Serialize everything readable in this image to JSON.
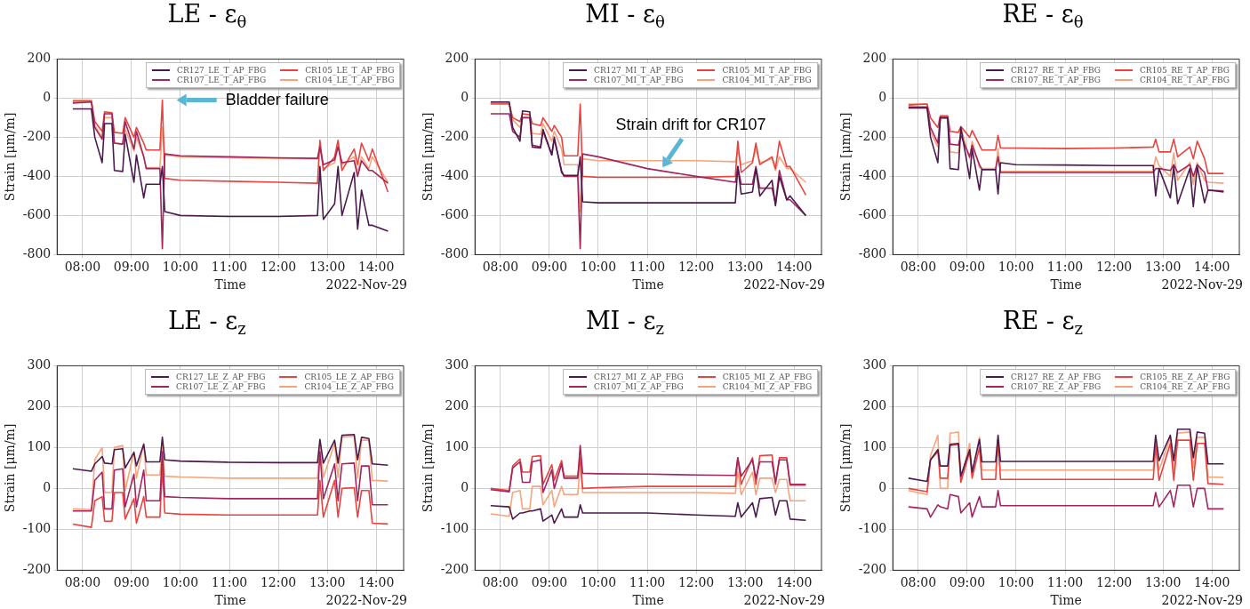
{
  "chart_data": [
    {
      "type": "line",
      "title": "LE - ε$_{θ}$",
      "xlabel": "Time",
      "ylabel": "Strain [μm/m]",
      "xlim": [
        7.48,
        14.56
      ],
      "xticks": [
        {
          "value": 8,
          "label": "08:00"
        },
        {
          "value": 9,
          "label": "09:00"
        },
        {
          "value": 10,
          "label": "10:00"
        },
        {
          "value": 11,
          "label": "11:00"
        },
        {
          "value": 12,
          "label": "12:00"
        },
        {
          "value": 13,
          "label": "13:00"
        },
        {
          "value": 14,
          "label": "14:00"
        }
      ],
      "ylim": [
        -800,
        200
      ],
      "yticks": [
        -800,
        -600,
        -400,
        -200,
        0,
        200
      ],
      "grid": true,
      "legend": "top right",
      "x": [
        7.8,
        8.18,
        8.25,
        8.4,
        8.45,
        8.6,
        8.65,
        8.82,
        8.87,
        9.05,
        9.1,
        9.25,
        9.3,
        9.58,
        9.63,
        9.68,
        10.0,
        11.0,
        12.0,
        12.8,
        12.85,
        12.92,
        13.15,
        13.22,
        13.3,
        13.55,
        13.62,
        13.7,
        13.85,
        13.92,
        14.24
      ],
      "series": [
        {
          "name": "CR127_LE_T_AP_FBG",
          "color": "#4a1a4c",
          "values": [
            -55,
            -55,
            -200,
            -330,
            -130,
            -130,
            -370,
            -375,
            -185,
            -430,
            -290,
            -510,
            -440,
            -440,
            -350,
            -580,
            -600,
            -605,
            -605,
            -600,
            -350,
            -620,
            -540,
            -350,
            -600,
            -380,
            -670,
            -470,
            -650,
            -650,
            -680
          ]
        },
        {
          "name": "CR107_LE_T_AP_FBG",
          "color": "#a2255f",
          "values": [
            -25,
            -20,
            -150,
            -210,
            -80,
            -80,
            -230,
            -235,
            -120,
            -260,
            -170,
            -300,
            -360,
            -360,
            -770,
            -285,
            -295,
            -300,
            -305,
            -308,
            -250,
            -340,
            -315,
            -250,
            -330,
            -320,
            -400,
            -320,
            -370,
            -370,
            -435
          ]
        },
        {
          "name": "CR105_LE_T_AP_FBG",
          "color": "#e8433f",
          "values": [
            -15,
            -15,
            -120,
            -170,
            -70,
            -75,
            -175,
            -180,
            -100,
            -200,
            -150,
            -230,
            -265,
            -265,
            -10,
            -410,
            -420,
            -425,
            -430,
            -435,
            -215,
            -370,
            -300,
            -215,
            -370,
            -260,
            -340,
            -230,
            -320,
            -260,
            -480
          ]
        },
        {
          "name": "CR104_LE_T_AP_FBG",
          "color": "#f7a47c",
          "values": [
            -10,
            -10,
            -140,
            -200,
            -100,
            -100,
            -230,
            -235,
            -160,
            -270,
            -200,
            -300,
            -355,
            -355,
            -150,
            -290,
            -300,
            -305,
            -308,
            -310,
            -240,
            -360,
            -330,
            -240,
            -340,
            -300,
            -380,
            -300,
            -360,
            -300,
            -430
          ]
        }
      ],
      "annotations": [
        "Bladder failure",
        "2022-Nov-29"
      ]
    },
    {
      "type": "line",
      "title": "MI - ε$_{θ}$",
      "xlabel": "Time",
      "ylabel": "Strain [μm/m]",
      "xlim": [
        7.48,
        14.56
      ],
      "xticks": [
        {
          "value": 8,
          "label": "08:00"
        },
        {
          "value": 9,
          "label": "09:00"
        },
        {
          "value": 10,
          "label": "10:00"
        },
        {
          "value": 11,
          "label": "11:00"
        },
        {
          "value": 12,
          "label": "12:00"
        },
        {
          "value": 13,
          "label": "13:00"
        },
        {
          "value": 14,
          "label": "14:00"
        }
      ],
      "ylim": [
        -800,
        200
      ],
      "yticks": [
        -800,
        -600,
        -400,
        -200,
        0,
        200
      ],
      "grid": true,
      "legend": "top right",
      "x": [
        7.8,
        8.18,
        8.25,
        8.4,
        8.45,
        8.6,
        8.65,
        8.82,
        8.87,
        9.05,
        9.1,
        9.25,
        9.3,
        9.58,
        9.63,
        9.68,
        10.0,
        11.0,
        12.0,
        12.8,
        12.85,
        12.92,
        13.15,
        13.22,
        13.3,
        13.55,
        13.62,
        13.7,
        13.85,
        13.92,
        14.24
      ],
      "series": [
        {
          "name": "CR127_MI_T_AP_FBG",
          "color": "#4a1a4c",
          "values": [
            -20,
            -20,
            -150,
            -220,
            -65,
            -70,
            -250,
            -255,
            -160,
            -290,
            -200,
            -380,
            -395,
            -395,
            -300,
            -530,
            -535,
            -535,
            -535,
            -535,
            -350,
            -490,
            -480,
            -360,
            -500,
            -420,
            -550,
            -400,
            -520,
            -500,
            -600
          ]
        },
        {
          "name": "CR107_MI_T_AP_FBG",
          "color": "#a2255f",
          "values": [
            -80,
            -80,
            -170,
            -200,
            -100,
            -100,
            -240,
            -250,
            -170,
            -290,
            -210,
            -370,
            -400,
            -400,
            -770,
            -285,
            -300,
            -360,
            -400,
            -430,
            -350,
            -440,
            -440,
            -350,
            -460,
            -460,
            -540,
            -370,
            -520,
            -520,
            -600
          ]
        },
        {
          "name": "CR105_MI_T_AP_FBG",
          "color": "#e8433f",
          "values": [
            -30,
            -30,
            -100,
            -120,
            -80,
            -85,
            -130,
            -140,
            -100,
            -170,
            -140,
            -200,
            -295,
            -295,
            -30,
            -400,
            -405,
            -405,
            -405,
            -400,
            -220,
            -380,
            -330,
            -230,
            -340,
            -300,
            -360,
            -220,
            -350,
            -350,
            -495
          ]
        },
        {
          "name": "CR104_MI_T_AP_FBG",
          "color": "#f7a47c",
          "values": [
            -25,
            -25,
            -110,
            -150,
            -100,
            -100,
            -180,
            -185,
            -130,
            -220,
            -170,
            -260,
            -340,
            -340,
            -580,
            -310,
            -320,
            -320,
            -320,
            -325,
            -270,
            -340,
            -320,
            -260,
            -330,
            -310,
            -370,
            -300,
            -360,
            -360,
            -430
          ]
        }
      ],
      "annotations": [
        {
          "text": "Strain drift for CR107",
          "x": 11.31,
          "y": -354
        },
        "2022-Nov-29"
      ]
    },
    {
      "type": "line",
      "title": "RE - ε$_{θ}$",
      "xlabel": "Time",
      "ylabel": "Strain [μm/m]",
      "xlim": [
        7.48,
        14.56
      ],
      "xticks": [
        {
          "value": 8,
          "label": "08:00"
        },
        {
          "value": 9,
          "label": "09:00"
        },
        {
          "value": 10,
          "label": "10:00"
        },
        {
          "value": 11,
          "label": "11:00"
        },
        {
          "value": 12,
          "label": "12:00"
        },
        {
          "value": 13,
          "label": "13:00"
        },
        {
          "value": 14,
          "label": "14:00"
        }
      ],
      "ylim": [
        -800,
        200
      ],
      "yticks": [
        -800,
        -600,
        -400,
        -200,
        0,
        200
      ],
      "grid": true,
      "legend": "top right",
      "x": [
        7.8,
        8.18,
        8.25,
        8.4,
        8.45,
        8.6,
        8.65,
        8.82,
        8.87,
        9.05,
        9.1,
        9.25,
        9.3,
        9.58,
        9.63,
        9.68,
        10.0,
        11.0,
        12.0,
        12.8,
        12.85,
        12.92,
        13.15,
        13.22,
        13.3,
        13.55,
        13.62,
        13.7,
        13.85,
        13.92,
        14.24
      ],
      "series": [
        {
          "name": "CR127_RE_T_AP_FBG",
          "color": "#4a1a4c",
          "values": [
            -50,
            -50,
            -200,
            -330,
            -100,
            -100,
            -360,
            -365,
            -150,
            -410,
            -260,
            -470,
            -365,
            -365,
            -490,
            -330,
            -340,
            -342,
            -345,
            -345,
            -500,
            -360,
            -510,
            -350,
            -540,
            -360,
            -555,
            -350,
            -535,
            -470,
            -480
          ]
        },
        {
          "name": "CR107_RE_T_AP_FBG",
          "color": "#a2255f",
          "values": [
            -45,
            -45,
            -150,
            -230,
            -100,
            -100,
            -235,
            -240,
            -190,
            -300,
            -240,
            -340,
            -365,
            -365,
            -300,
            -380,
            -380,
            -380,
            -380,
            -380,
            -360,
            -360,
            -370,
            -340,
            -380,
            -340,
            -400,
            -340,
            -380,
            -470,
            -475
          ]
        },
        {
          "name": "CR105_RE_T_AP_FBG",
          "color": "#e8433f",
          "values": [
            -35,
            -30,
            -100,
            -150,
            -90,
            -90,
            -170,
            -175,
            -145,
            -200,
            -165,
            -240,
            -265,
            -265,
            -190,
            -255,
            -255,
            -258,
            -255,
            -250,
            -210,
            -275,
            -275,
            -210,
            -300,
            -250,
            -310,
            -220,
            -310,
            -385,
            -385
          ]
        },
        {
          "name": "CR104_RE_T_AP_FBG",
          "color": "#f7a47c",
          "values": [
            -30,
            -30,
            -170,
            -250,
            -100,
            -105,
            -275,
            -280,
            -150,
            -310,
            -220,
            -355,
            -360,
            -360,
            -260,
            -375,
            -375,
            -375,
            -375,
            -375,
            -300,
            -345,
            -400,
            -280,
            -420,
            -330,
            -440,
            -330,
            -420,
            -430,
            -435
          ]
        }
      ],
      "annotations": [
        "2022-Nov-29"
      ]
    },
    {
      "type": "line",
      "title": "LE - ε$_{z}$",
      "xlabel": "Time",
      "ylabel": "Strain [μm/m]",
      "xlim": [
        7.48,
        14.56
      ],
      "xticks": [
        {
          "value": 8,
          "label": "08:00"
        },
        {
          "value": 9,
          "label": "09:00"
        },
        {
          "value": 10,
          "label": "10:00"
        },
        {
          "value": 11,
          "label": "11:00"
        },
        {
          "value": 12,
          "label": "12:00"
        },
        {
          "value": 13,
          "label": "13:00"
        },
        {
          "value": 14,
          "label": "14:00"
        }
      ],
      "ylim": [
        -200,
        300
      ],
      "yticks": [
        -200,
        -100,
        0,
        100,
        200,
        300
      ],
      "grid": true,
      "legend": "top right",
      "x": [
        7.8,
        8.18,
        8.25,
        8.4,
        8.45,
        8.6,
        8.65,
        8.82,
        8.87,
        9.05,
        9.1,
        9.25,
        9.3,
        9.58,
        9.63,
        9.68,
        10.0,
        11.0,
        12.0,
        12.8,
        12.85,
        12.92,
        13.15,
        13.22,
        13.3,
        13.55,
        13.62,
        13.7,
        13.85,
        13.92,
        14.24
      ],
      "series": [
        {
          "name": "CR127_LE_Z_AP_FBG",
          "color": "#4a1a4c",
          "values": [
            48,
            42,
            60,
            78,
            62,
            60,
            95,
            97,
            50,
            88,
            55,
            108,
            65,
            65,
            125,
            70,
            67,
            64,
            63,
            63,
            120,
            62,
            118,
            62,
            130,
            132,
            70,
            125,
            122,
            60,
            57
          ]
        },
        {
          "name": "CR107_LE_Z_AP_FBG",
          "color": "#a2255f",
          "values": [
            -55,
            -55,
            20,
            40,
            -50,
            -50,
            45,
            48,
            -45,
            35,
            -45,
            45,
            -30,
            -30,
            90,
            -20,
            -22,
            -25,
            -25,
            -25,
            90,
            -25,
            60,
            -30,
            60,
            62,
            -30,
            55,
            55,
            -40,
            -40
          ]
        },
        {
          "name": "CR105_LE_Z_AP_FBG",
          "color": "#e8433f",
          "values": [
            -87,
            -95,
            -30,
            -20,
            -80,
            -80,
            -10,
            -10,
            -75,
            -25,
            -85,
            -20,
            -70,
            -70,
            50,
            -60,
            -63,
            -65,
            -65,
            -65,
            20,
            -70,
            20,
            -70,
            0,
            2,
            -70,
            -5,
            -5,
            -85,
            -87
          ]
        },
        {
          "name": "CR104_LE_Z_AP_FBG",
          "color": "#f7a47c",
          "values": [
            -50,
            -52,
            70,
            100,
            -10,
            -10,
            100,
            105,
            -5,
            90,
            25,
            110,
            33,
            33,
            105,
            30,
            28,
            25,
            25,
            25,
            110,
            27,
            110,
            27,
            125,
            128,
            25,
            118,
            118,
            20,
            18
          ]
        }
      ],
      "annotations": [
        "2022-Nov-29"
      ]
    },
    {
      "type": "line",
      "title": "MI - ε$_{z}$",
      "xlabel": "Time",
      "ylabel": "Strain [μm/m]",
      "xlim": [
        7.48,
        14.56
      ],
      "xticks": [
        {
          "value": 8,
          "label": "08:00"
        },
        {
          "value": 9,
          "label": "09:00"
        },
        {
          "value": 10,
          "label": "10:00"
        },
        {
          "value": 11,
          "label": "11:00"
        },
        {
          "value": 12,
          "label": "12:00"
        },
        {
          "value": 13,
          "label": "13:00"
        },
        {
          "value": 14,
          "label": "14:00"
        }
      ],
      "ylim": [
        -200,
        300
      ],
      "yticks": [
        -200,
        -100,
        0,
        100,
        200,
        300
      ],
      "grid": true,
      "legend": "top right",
      "x": [
        7.8,
        8.18,
        8.25,
        8.4,
        8.45,
        8.6,
        8.65,
        8.82,
        8.87,
        9.05,
        9.1,
        9.25,
        9.3,
        9.58,
        9.63,
        9.68,
        10.0,
        11.0,
        12.0,
        12.8,
        12.85,
        12.92,
        13.15,
        13.22,
        13.3,
        13.55,
        13.62,
        13.7,
        13.85,
        13.92,
        14.24
      ],
      "series": [
        {
          "name": "CR127_MI_Z_AP_FBG",
          "color": "#4a1a4c",
          "values": [
            -42,
            -45,
            -75,
            -60,
            -60,
            -55,
            -55,
            -50,
            -80,
            -65,
            -85,
            -50,
            -70,
            -70,
            -40,
            -60,
            -60,
            -60,
            -65,
            -68,
            -35,
            -70,
            -35,
            -70,
            -25,
            -22,
            -65,
            -30,
            -30,
            -75,
            -78
          ]
        },
        {
          "name": "CR107_MI_Z_AP_FBG",
          "color": "#a2255f",
          "values": [
            -3,
            -8,
            50,
            65,
            15,
            15,
            65,
            70,
            -10,
            45,
            0,
            60,
            25,
            25,
            105,
            37,
            36,
            35,
            33,
            32,
            75,
            30,
            70,
            25,
            65,
            65,
            15,
            70,
            70,
            10,
            10
          ]
        },
        {
          "name": "CR105_MI_Z_AP_FBG",
          "color": "#e8433f",
          "values": [
            0,
            -5,
            55,
            72,
            40,
            40,
            78,
            80,
            10,
            58,
            20,
            68,
            30,
            30,
            75,
            0,
            2,
            5,
            5,
            5,
            75,
            10,
            75,
            10,
            80,
            82,
            10,
            75,
            75,
            8,
            8
          ]
        },
        {
          "name": "CR104_MI_Z_AP_FBG",
          "color": "#f7a47c",
          "values": [
            -62,
            -68,
            -10,
            -5,
            -50,
            -50,
            5,
            5,
            -40,
            -5,
            -45,
            5,
            -15,
            -15,
            60,
            -10,
            -10,
            -10,
            -10,
            -12,
            40,
            -15,
            40,
            -15,
            25,
            25,
            -10,
            22,
            22,
            -30,
            -30
          ]
        }
      ],
      "annotations": [
        "2022-Nov-29"
      ]
    },
    {
      "type": "line",
      "title": "RE - ε$_{z}$",
      "xlabel": "Time",
      "ylabel": "Strain [μm/m]",
      "xlim": [
        7.48,
        14.56
      ],
      "xticks": [
        {
          "value": 8,
          "label": "08:00"
        },
        {
          "value": 9,
          "label": "09:00"
        },
        {
          "value": 10,
          "label": "10:00"
        },
        {
          "value": 11,
          "label": "11:00"
        },
        {
          "value": 12,
          "label": "12:00"
        },
        {
          "value": 13,
          "label": "13:00"
        },
        {
          "value": 14,
          "label": "14:00"
        }
      ],
      "ylim": [
        -200,
        300
      ],
      "yticks": [
        -200,
        -100,
        0,
        100,
        200,
        300
      ],
      "grid": true,
      "legend": "top right",
      "x": [
        7.8,
        8.18,
        8.25,
        8.4,
        8.45,
        8.6,
        8.65,
        8.82,
        8.87,
        9.05,
        9.1,
        9.25,
        9.3,
        9.58,
        9.63,
        9.68,
        10.0,
        11.0,
        12.0,
        12.8,
        12.85,
        12.92,
        13.15,
        13.22,
        13.3,
        13.55,
        13.62,
        13.7,
        13.85,
        13.92,
        14.24
      ],
      "series": [
        {
          "name": "CR127_RE_Z_AP_FBG",
          "color": "#4a1a4c",
          "values": [
            25,
            17,
            70,
            95,
            55,
            55,
            108,
            110,
            30,
            95,
            40,
            120,
            65,
            65,
            130,
            66,
            66,
            66,
            66,
            66,
            130,
            68,
            130,
            68,
            145,
            145,
            75,
            138,
            135,
            60,
            60
          ]
        },
        {
          "name": "CR107_RE_Z_AP_FBG",
          "color": "#a2255f",
          "values": [
            -45,
            -50,
            -70,
            -40,
            -45,
            -50,
            -15,
            -20,
            -60,
            -35,
            -70,
            -20,
            -45,
            -45,
            -5,
            -42,
            -42,
            -42,
            -42,
            -42,
            -10,
            -45,
            -5,
            -45,
            8,
            8,
            -45,
            0,
            0,
            -50,
            -50
          ]
        },
        {
          "name": "CR105_RE_Z_AP_FBG",
          "color": "#e8433f",
          "values": [
            0,
            -8,
            70,
            90,
            25,
            25,
            105,
            108,
            15,
            90,
            25,
            100,
            22,
            22,
            120,
            22,
            22,
            22,
            22,
            22,
            105,
            20,
            110,
            20,
            118,
            118,
            20,
            110,
            110,
            12,
            10
          ]
        },
        {
          "name": "CR104_RE_Z_AP_FBG",
          "color": "#f7a47c",
          "values": [
            -5,
            -15,
            80,
            130,
            0,
            0,
            135,
            138,
            20,
            110,
            35,
            125,
            45,
            45,
            95,
            45,
            45,
            45,
            45,
            45,
            115,
            45,
            125,
            45,
            135,
            138,
            50,
            125,
            125,
            28,
            27
          ]
        }
      ],
      "annotations": [
        "2022-Nov-29"
      ]
    }
  ]
}
